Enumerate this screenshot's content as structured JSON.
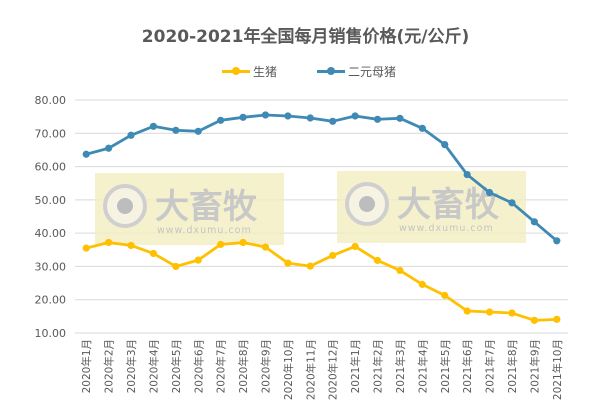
{
  "chart_data": {
    "type": "line",
    "title": "2020-2021年全国每月销售价格(元/公斤)",
    "xlabel": "",
    "ylabel": "",
    "ylim": [
      10,
      80
    ],
    "yticks": [
      "80.00",
      "70.00",
      "60.00",
      "50.00",
      "40.00",
      "30.00",
      "20.00",
      "10.00"
    ],
    "grid": true,
    "legend_position": "top",
    "categories": [
      "2020年1月",
      "2020年2月",
      "2020年3月",
      "2020年4月",
      "2020年5月",
      "2020年6月",
      "2020年7月",
      "2020年8月",
      "2020年9月",
      "2020年10月",
      "2020年11月",
      "2020年12月",
      "2021年1月",
      "2021年2月",
      "2021年3月",
      "2021年4月",
      "2021年5月",
      "2021年6月",
      "2021年7月",
      "2021年8月",
      "2021年9月",
      "2021年10月"
    ],
    "series": [
      {
        "name": "生猪",
        "color": "#FFC000",
        "values": [
          35.5,
          37.2,
          36.3,
          33.9,
          30.0,
          31.9,
          36.6,
          37.2,
          35.8,
          31.0,
          30.1,
          33.3,
          36.0,
          31.8,
          28.8,
          24.6,
          21.3,
          16.6,
          16.3,
          16.0,
          13.8,
          14.1
        ]
      },
      {
        "name": "二元母猪",
        "color": "#3E8AB4",
        "values": [
          63.7,
          65.5,
          69.4,
          72.1,
          70.9,
          70.6,
          73.9,
          74.8,
          75.5,
          75.2,
          74.6,
          73.6,
          75.2,
          74.2,
          74.5,
          71.5,
          66.6,
          57.6,
          52.2,
          49.1,
          43.4,
          37.7
        ]
      }
    ]
  },
  "watermark": {
    "brand": "大畜牧",
    "url": "www.dxumu.com"
  }
}
